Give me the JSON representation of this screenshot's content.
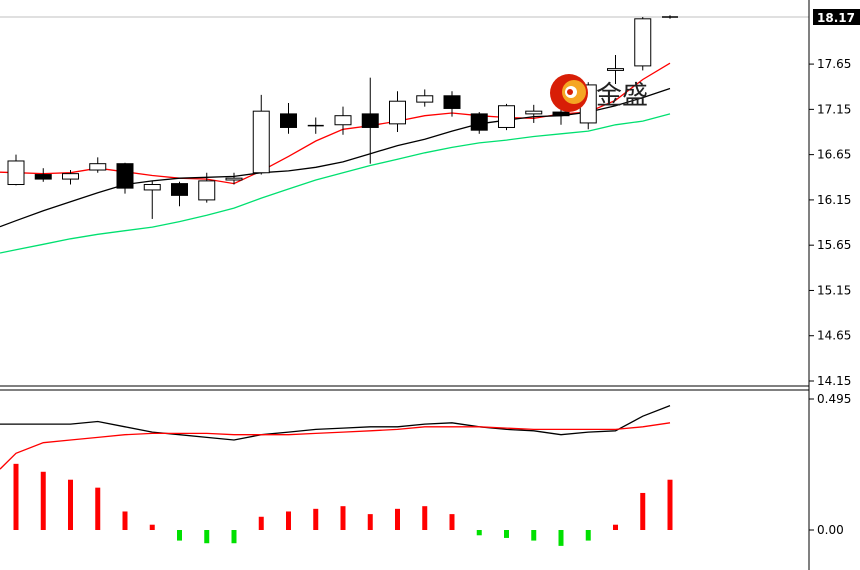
{
  "chart_data": [
    {
      "type": "candlestick",
      "ylim": [
        14.1,
        18.25
      ],
      "y_ticks": [
        "17.65",
        "17.15",
        "16.65",
        "16.15",
        "15.65",
        "15.15",
        "14.65",
        "14.15"
      ],
      "current_price": "18.17",
      "grid": false,
      "candles": [
        {
          "o": 16.32,
          "h": 16.65,
          "l": 16.31,
          "c": 16.58
        },
        {
          "o": 16.43,
          "h": 16.5,
          "l": 16.35,
          "c": 16.38
        },
        {
          "o": 16.38,
          "h": 16.48,
          "l": 16.32,
          "c": 16.44
        },
        {
          "o": 16.48,
          "h": 16.62,
          "l": 16.45,
          "c": 16.55
        },
        {
          "o": 16.55,
          "h": 16.56,
          "l": 16.22,
          "c": 16.28
        },
        {
          "o": 16.26,
          "h": 16.36,
          "l": 15.94,
          "c": 16.32
        },
        {
          "o": 16.33,
          "h": 16.35,
          "l": 16.08,
          "c": 16.2
        },
        {
          "o": 16.15,
          "h": 16.45,
          "l": 16.12,
          "c": 16.36
        },
        {
          "o": 16.37,
          "h": 16.45,
          "l": 16.32,
          "c": 16.39
        },
        {
          "o": 16.45,
          "h": 17.31,
          "l": 16.43,
          "c": 17.13
        },
        {
          "o": 17.1,
          "h": 17.22,
          "l": 16.88,
          "c": 16.95
        },
        {
          "o": 16.97,
          "h": 17.06,
          "l": 16.88,
          "c": 16.97
        },
        {
          "o": 16.98,
          "h": 17.18,
          "l": 16.87,
          "c": 17.08
        },
        {
          "o": 17.1,
          "h": 17.5,
          "l": 16.55,
          "c": 16.95
        },
        {
          "o": 16.99,
          "h": 17.35,
          "l": 16.9,
          "c": 17.24
        },
        {
          "o": 17.23,
          "h": 17.37,
          "l": 17.18,
          "c": 17.3
        },
        {
          "o": 17.3,
          "h": 17.35,
          "l": 17.07,
          "c": 17.16
        },
        {
          "o": 17.1,
          "h": 17.12,
          "l": 16.88,
          "c": 16.92
        },
        {
          "o": 16.95,
          "h": 17.21,
          "l": 16.92,
          "c": 17.19
        },
        {
          "o": 17.1,
          "h": 17.2,
          "l": 17.0,
          "c": 17.13
        },
        {
          "o": 17.12,
          "h": 17.18,
          "l": 16.98,
          "c": 17.08
        },
        {
          "o": 17.0,
          "h": 17.45,
          "l": 16.93,
          "c": 17.42
        },
        {
          "o": 17.58,
          "h": 17.75,
          "l": 17.43,
          "c": 17.6
        },
        {
          "o": 17.63,
          "h": 18.17,
          "l": 17.58,
          "c": 18.15
        },
        {
          "o": 18.17,
          "h": 18.19,
          "l": 18.15,
          "c": 18.17
        }
      ],
      "ma_series": [
        {
          "color": "#ff0000",
          "values": [
            16.45,
            16.44,
            16.45,
            16.5,
            16.46,
            16.42,
            16.39,
            16.38,
            16.33,
            16.47,
            16.63,
            16.8,
            16.93,
            16.97,
            17.02,
            17.08,
            17.11,
            17.08,
            17.06,
            17.05,
            17.1,
            17.12,
            17.25,
            17.48,
            17.66
          ]
        },
        {
          "color": "#000000",
          "values": [
            15.92,
            16.03,
            16.13,
            16.23,
            16.32,
            16.36,
            16.39,
            16.4,
            16.41,
            16.45,
            16.47,
            16.51,
            16.57,
            16.66,
            16.75,
            16.82,
            16.91,
            16.99,
            17.03,
            17.07,
            17.08,
            17.12,
            17.19,
            17.28,
            17.38
          ]
        },
        {
          "color": "#00e070",
          "values": [
            15.6,
            15.66,
            15.72,
            15.77,
            15.81,
            15.85,
            15.91,
            15.98,
            16.06,
            16.17,
            16.27,
            16.37,
            16.45,
            16.53,
            16.6,
            16.67,
            16.73,
            16.78,
            16.81,
            16.85,
            16.88,
            16.91,
            16.98,
            17.02,
            17.1
          ]
        }
      ]
    },
    {
      "type": "bar",
      "subtype": "histogram-oscillator",
      "ylim": [
        -0.2,
        0.495
      ],
      "y_ticks": [
        "0.495",
        "0.00"
      ],
      "bar_pos_color": "#ff0000",
      "bar_neg_color": "#00e000",
      "values": [
        0.25,
        0.22,
        0.19,
        0.16,
        0.07,
        0.02,
        -0.04,
        -0.05,
        -0.05,
        0.05,
        0.07,
        0.08,
        0.09,
        0.06,
        0.08,
        0.09,
        0.06,
        -0.02,
        -0.03,
        -0.04,
        -0.06,
        -0.04,
        0.02,
        0.14,
        0.19
      ],
      "lines": [
        {
          "color": "#000000",
          "values": [
            0.4,
            0.4,
            0.4,
            0.41,
            0.39,
            0.37,
            0.36,
            0.35,
            0.34,
            0.36,
            0.37,
            0.38,
            0.385,
            0.39,
            0.39,
            0.4,
            0.405,
            0.39,
            0.38,
            0.375,
            0.36,
            0.37,
            0.375,
            0.43,
            0.47
          ]
        },
        {
          "color": "#ff0000",
          "values": [
            0.29,
            0.33,
            0.34,
            0.35,
            0.36,
            0.365,
            0.365,
            0.365,
            0.36,
            0.36,
            0.36,
            0.365,
            0.37,
            0.375,
            0.38,
            0.39,
            0.39,
            0.39,
            0.385,
            0.38,
            0.38,
            0.38,
            0.38,
            0.39,
            0.405
          ]
        }
      ]
    }
  ],
  "watermark": {
    "text": "金盛",
    "logo_icon": "jinsheng-logo-icon"
  }
}
